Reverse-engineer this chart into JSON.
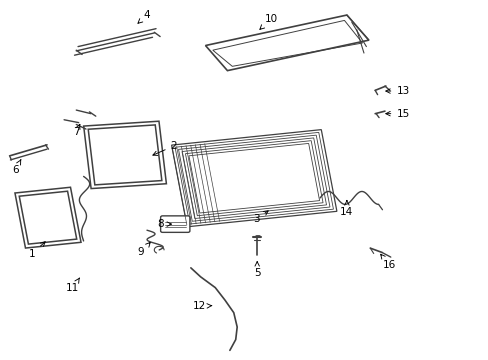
{
  "background_color": "#ffffff",
  "line_color": "#404040",
  "figsize": [
    4.89,
    3.6
  ],
  "dpi": 100,
  "labels": {
    "1": [
      0.085,
      0.335,
      0.065,
      0.295
    ],
    "2": [
      0.305,
      0.565,
      0.355,
      0.595
    ],
    "3": [
      0.555,
      0.415,
      0.525,
      0.39
    ],
    "4": [
      0.29,
      0.94,
      0.265,
      0.915
    ],
    "5": [
      0.53,
      0.27,
      0.53,
      0.235
    ],
    "6": [
      0.06,
      0.58,
      0.04,
      0.55
    ],
    "7": [
      0.165,
      0.67,
      0.155,
      0.645
    ],
    "8": [
      0.395,
      0.365,
      0.36,
      0.365
    ],
    "9": [
      0.31,
      0.31,
      0.29,
      0.28
    ],
    "10": [
      0.545,
      0.93,
      0.575,
      0.96
    ],
    "11": [
      0.15,
      0.225,
      0.15,
      0.195
    ],
    "12": [
      0.455,
      0.145,
      0.42,
      0.145
    ],
    "13": [
      0.81,
      0.745,
      0.84,
      0.745
    ],
    "14": [
      0.72,
      0.43,
      0.72,
      0.4
    ],
    "15": [
      0.81,
      0.68,
      0.84,
      0.68
    ],
    "16": [
      0.78,
      0.285,
      0.8,
      0.255
    ]
  }
}
